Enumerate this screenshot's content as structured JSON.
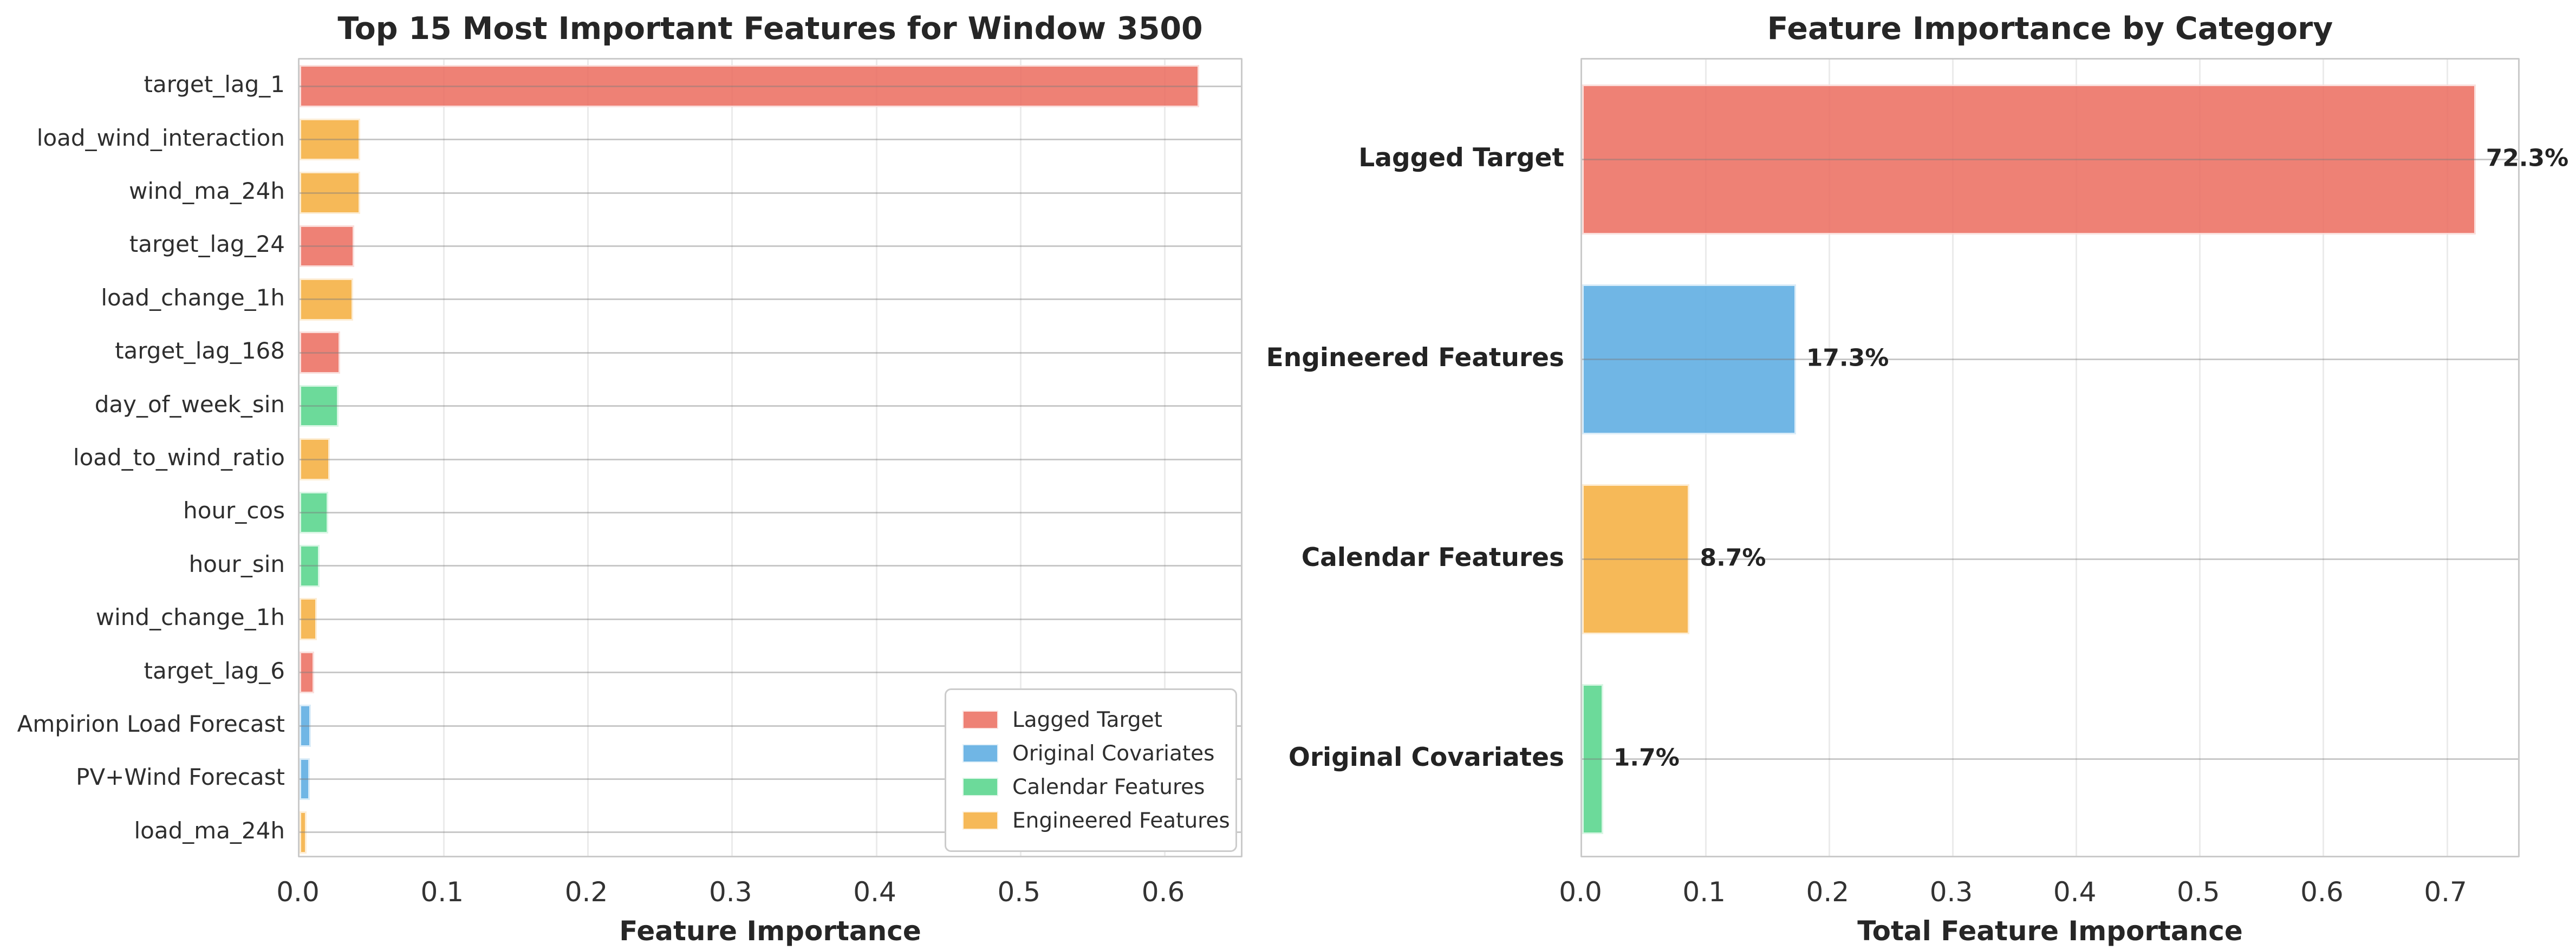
{
  "palette": {
    "red": "#ec7063",
    "blue": "#5dade2",
    "green": "#58d68d",
    "orange": "#f5b041"
  },
  "chart_data": [
    {
      "type": "bar",
      "orientation": "horizontal",
      "title": "Top 15 Most Important Features for Window 3500",
      "xlabel": "Feature Importance",
      "ylabel": "",
      "xlim": [
        0,
        0.655
      ],
      "xticks": [
        "0.0",
        "0.1",
        "0.2",
        "0.3",
        "0.4",
        "0.5",
        "0.6"
      ],
      "xtick_values": [
        0.0,
        0.1,
        0.2,
        0.3,
        0.4,
        0.5,
        0.6
      ],
      "grid": true,
      "categories": [
        "target_lag_1",
        "load_wind_interaction",
        "wind_ma_24h",
        "target_lag_24",
        "load_change_1h",
        "target_lag_168",
        "day_of_week_sin",
        "load_to_wind_ratio",
        "hour_cos",
        "hour_sin",
        "wind_change_1h",
        "target_lag_6",
        "Ampirion Load Forecast",
        "PV+Wind Forecast",
        "load_ma_24h"
      ],
      "values": [
        0.624,
        0.042,
        0.042,
        0.038,
        0.037,
        0.028,
        0.027,
        0.021,
        0.02,
        0.014,
        0.012,
        0.01,
        0.008,
        0.007,
        0.005
      ],
      "bar_colors": [
        "red",
        "orange",
        "orange",
        "red",
        "orange",
        "red",
        "green",
        "orange",
        "green",
        "green",
        "orange",
        "red",
        "blue",
        "blue",
        "orange"
      ],
      "legend": {
        "position": "lower right",
        "entries": [
          {
            "label": "Lagged Target",
            "color": "red"
          },
          {
            "label": "Original Covariates",
            "color": "blue"
          },
          {
            "label": "Calendar Features",
            "color": "green"
          },
          {
            "label": "Engineered Features",
            "color": "orange"
          }
        ]
      }
    },
    {
      "type": "bar",
      "orientation": "horizontal",
      "title": "Feature Importance by Category",
      "xlabel": "Total Feature Importance",
      "ylabel": "",
      "xlim": [
        0,
        0.76
      ],
      "xticks": [
        "0.0",
        "0.1",
        "0.2",
        "0.3",
        "0.4",
        "0.5",
        "0.6",
        "0.7"
      ],
      "xtick_values": [
        0.0,
        0.1,
        0.2,
        0.3,
        0.4,
        0.5,
        0.6,
        0.7
      ],
      "grid": true,
      "categories": [
        "Lagged Target",
        "Engineered Features",
        "Calendar Features",
        "Original Covariates"
      ],
      "values": [
        0.723,
        0.173,
        0.087,
        0.017
      ],
      "bar_labels": [
        "72.3%",
        "17.3%",
        "8.7%",
        "1.7%"
      ],
      "bar_colors": [
        "red",
        "blue",
        "orange",
        "green"
      ]
    }
  ]
}
